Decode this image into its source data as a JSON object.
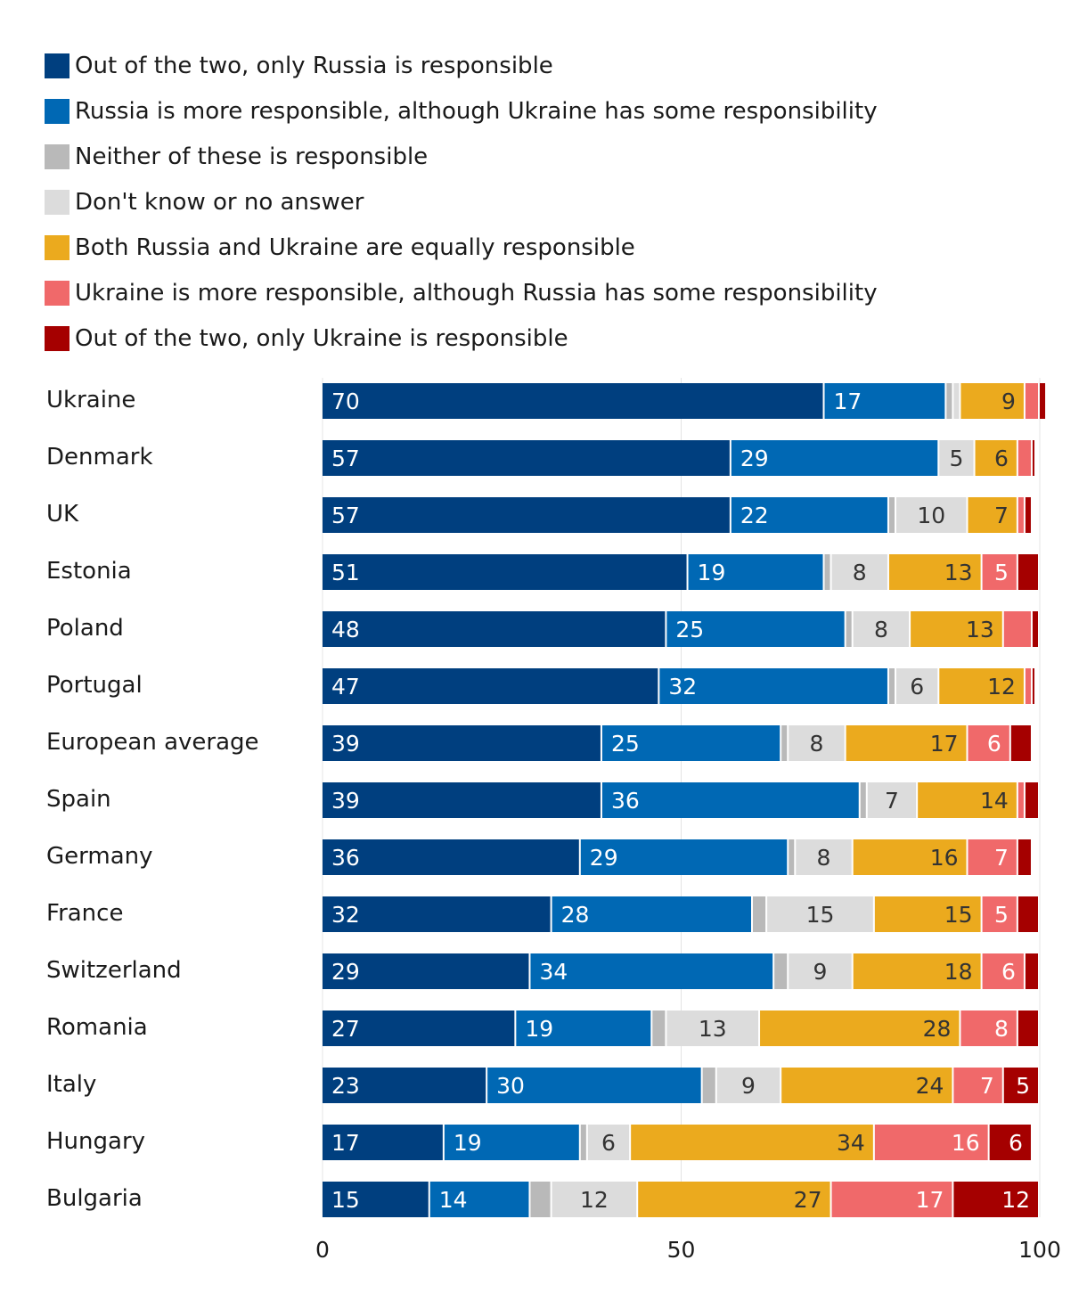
{
  "chart_data": {
    "type": "bar",
    "orientation": "horizontal",
    "stacked": true,
    "title": "",
    "xlabel": "",
    "ylabel": "",
    "xlim": [
      0,
      100
    ],
    "xticks": [
      0,
      50,
      100
    ],
    "grid": true,
    "legend_position": "top",
    "categories": [
      "Ukraine",
      "Denmark",
      "UK",
      "Estonia",
      "Poland",
      "Portugal",
      "European average",
      "Spain",
      "Germany",
      "France",
      "Switzerland",
      "Romania",
      "Italy",
      "Hungary",
      "Bulgaria"
    ],
    "series": [
      {
        "name": "Out of the two, only Russia is responsible",
        "color": "#003f7f",
        "label_color": "#ffffff",
        "values": [
          70,
          57,
          57,
          51,
          48,
          47,
          39,
          39,
          36,
          32,
          29,
          27,
          23,
          17,
          15
        ],
        "labels": [
          "70",
          "57",
          "57",
          "51",
          "48",
          "47",
          "39",
          "39",
          "36",
          "32",
          "29",
          "27",
          "23",
          "17",
          "15"
        ]
      },
      {
        "name": "Russia is more responsible, although Ukraine has some responsibility",
        "color": "#0068b4",
        "label_color": "#ffffff",
        "values": [
          17,
          29,
          22,
          19,
          25,
          32,
          25,
          36,
          29,
          28,
          34,
          19,
          30,
          19,
          14
        ],
        "labels": [
          "17",
          "29",
          "22",
          "19",
          "25",
          "32",
          "25",
          "36",
          "29",
          "28",
          "34",
          "19",
          "30",
          "19",
          "14"
        ]
      },
      {
        "name": "Neither of these is responsible",
        "color": "#b9b9b9",
        "label_color": "#333333",
        "values": [
          1,
          0,
          1,
          1,
          1,
          1,
          1,
          1,
          1,
          2,
          2,
          2,
          2,
          1,
          3
        ],
        "labels": [
          "",
          "",
          "",
          "",
          "",
          "",
          "",
          "",
          "",
          "",
          "",
          "",
          "",
          "",
          ""
        ]
      },
      {
        "name": "Don't know or no answer",
        "color": "#dcdcdc",
        "label_color": "#333333",
        "values": [
          1,
          5,
          10,
          8,
          8,
          6,
          8,
          7,
          8,
          15,
          9,
          13,
          9,
          6,
          12
        ],
        "labels": [
          "",
          "5",
          "10",
          "8",
          "8",
          "6",
          "8",
          "7",
          "8",
          "15",
          "9",
          "13",
          "9",
          "6",
          "12"
        ]
      },
      {
        "name": "Both Russia and Ukraine are equally responsible",
        "color": "#ebaa1e",
        "label_color": "#333333",
        "values": [
          9,
          6,
          7,
          13,
          13,
          12,
          17,
          14,
          16,
          15,
          18,
          28,
          24,
          34,
          27
        ],
        "labels": [
          "9",
          "6",
          "7",
          "13",
          "13",
          "12",
          "17",
          "14",
          "16",
          "15",
          "18",
          "28",
          "24",
          "34",
          "27"
        ]
      },
      {
        "name": "Ukraine is more responsible, although Russia has some responsibility",
        "color": "#f0696a",
        "label_color": "#ffffff",
        "values": [
          2,
          2,
          1,
          5,
          4,
          1,
          6,
          1,
          7,
          5,
          6,
          8,
          7,
          16,
          17
        ],
        "labels": [
          "",
          "",
          "",
          "5",
          "",
          "",
          "6",
          "",
          "7",
          "5",
          "6",
          "8",
          "7",
          "16",
          "17"
        ]
      },
      {
        "name": "Out of the two, only Ukraine is responsible",
        "color": "#a50000",
        "label_color": "#ffffff",
        "values": [
          1,
          0.5,
          1,
          3,
          1,
          0.5,
          3,
          2,
          2,
          3,
          2,
          3,
          5,
          6,
          12
        ],
        "labels": [
          "",
          "",
          "",
          "",
          "",
          "",
          "",
          "",
          "",
          "",
          "",
          "",
          "5",
          "6",
          "12"
        ]
      }
    ]
  }
}
